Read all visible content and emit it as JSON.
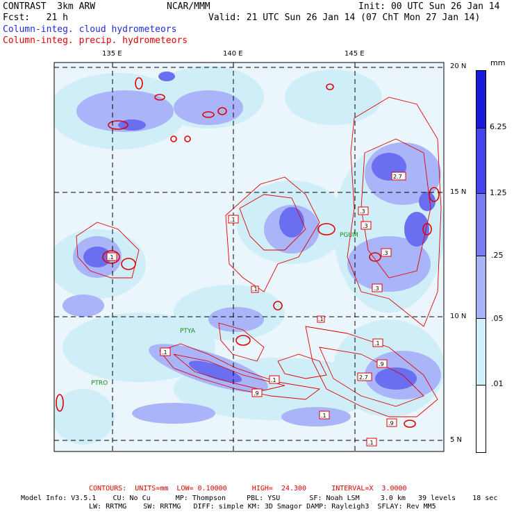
{
  "header": {
    "model": "CONTRAST  3km ARW",
    "center": "NCAR/MMM",
    "init": "Init: 00 UTC Sun 26 Jan 14",
    "fcst": "Fcst:   21 h",
    "valid": "Valid: 21 UTC Sun 26 Jan 14 (07 ChT Mon 27 Jan 14)",
    "field1": "Column-integ. cloud hydrometeors",
    "field2": "Column-integ. precip. hydrometeors"
  },
  "colors": {
    "field1": "#1f2bd6",
    "field2": "#dd0000",
    "contour": "#e00000",
    "grid": "#000000"
  },
  "map": {
    "lon_labels": [
      "135 E",
      "140 E",
      "145 E"
    ],
    "lat_labels": [
      "20 N",
      "15 N",
      "10 N",
      "5 N"
    ],
    "stations": [
      "PGUM",
      "PTYA",
      "PTRO"
    ],
    "contour_labels": [
      ".1",
      ".1",
      ".3",
      ".3",
      ".3",
      ".3",
      ".1",
      ".9",
      "2.7",
      "2.7",
      ".1",
      ".1",
      ".9",
      ".1",
      ".9",
      ".1",
      ".1",
      ".1"
    ]
  },
  "legend": {
    "unit": "mm",
    "levels": [
      "6.25",
      "1.25",
      ".25",
      ".05",
      ".01"
    ],
    "colors": [
      "#1a1adb",
      "#4444ee",
      "#7b7bf3",
      "#a9b3f8",
      "#d2f0f9",
      "#ffffff"
    ]
  },
  "footer": {
    "contours": "CONTOURS:  UNITS=mm  LOW= 0.10000      HIGH=  24.300      INTERVAL=X  3.0000",
    "model_info": "Model Info: V3.5.1    CU: No Cu      MP: Thompson     PBL: YSU       SF: Noah LSM     3.0 km   39 levels    18 sec",
    "physics": "LW: RRTMG    SW: RRTMG   DIFF: simple KM: 3D Smagor DAMP: Rayleigh3  SFLAY: Rev MM5"
  }
}
